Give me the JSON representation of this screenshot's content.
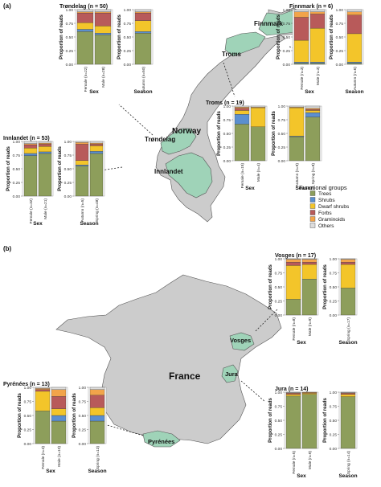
{
  "panels": [
    {
      "label": "(a)"
    },
    {
      "label": "(b)"
    }
  ],
  "map_labels": {
    "finnmark": "Finnmark",
    "troms": "Troms",
    "trondelag": "Trøndelag",
    "norway": "Norway",
    "innlandet": "Innlandet",
    "france": "France",
    "vosges": "Vosges",
    "jura": "Jura",
    "pyrenees": "Pyrénées"
  },
  "legend": {
    "title": "Functional groups",
    "items": [
      {
        "name": "Trees",
        "color": "#8d9e5b"
      },
      {
        "name": "Shrubs",
        "color": "#5b8fcf"
      },
      {
        "name": "Dwarf shrubs",
        "color": "#f3c52a"
      },
      {
        "name": "Forbs",
        "color": "#b85a5a"
      },
      {
        "name": "Graminoids",
        "color": "#f2a44a"
      },
      {
        "name": "Others",
        "color": "#dddddd"
      }
    ]
  },
  "colors": {
    "map_land": "#cccccc",
    "map_border": "#555555",
    "highlight_region": "#9fd3b8"
  },
  "chart_data": [
    {
      "type": "bar",
      "stacked": true,
      "title": "Trøndelag (n = 50)",
      "ylabel": "Proportion of reads",
      "ylim": [
        0,
        1
      ],
      "yticks": [
        "0.00",
        "0.25",
        "0.50",
        "0.75",
        "1.00"
      ],
      "stack_order": [
        "Trees",
        "Shrubs",
        "Dwarf shrubs",
        "Forbs",
        "Graminoids",
        "Others"
      ],
      "groups": [
        {
          "label": "Sex",
          "bars": [
            {
              "category": "Female (n=22)",
              "values": [
                0.6,
                0.04,
                0.12,
                0.18,
                0.02,
                0.04
              ]
            },
            {
              "category": "Male (n=28)",
              "values": [
                0.54,
                0.03,
                0.13,
                0.24,
                0.02,
                0.04
              ]
            }
          ]
        },
        {
          "label": "Season",
          "bars": [
            {
              "category": "Autumn (n=50)",
              "values": [
                0.57,
                0.03,
                0.2,
                0.14,
                0.02,
                0.04
              ]
            }
          ]
        }
      ]
    },
    {
      "type": "bar",
      "stacked": true,
      "title": "Finnmark (n = 6)",
      "ylabel": "Proportion of reads",
      "ylim": [
        0,
        1
      ],
      "yticks": [
        "0.00",
        "0.25",
        "0.50",
        "0.75",
        "1.00"
      ],
      "stack_order": [
        "Trees",
        "Shrubs",
        "Dwarf shrubs",
        "Forbs",
        "Graminoids",
        "Others"
      ],
      "groups": [
        {
          "label": "Sex",
          "bars": [
            {
              "category": "Female (n=3)",
              "values": [
                0.02,
                0.02,
                0.4,
                0.42,
                0.1,
                0.04
              ]
            },
            {
              "category": "Male (n=3)",
              "values": [
                0.02,
                0.02,
                0.62,
                0.26,
                0.04,
                0.04
              ]
            }
          ]
        },
        {
          "label": "Season",
          "bars": [
            {
              "category": "Autumn (n=6)",
              "values": [
                0.02,
                0.02,
                0.52,
                0.34,
                0.06,
                0.04
              ]
            }
          ]
        }
      ]
    },
    {
      "type": "bar",
      "stacked": true,
      "title": "Innlandet (n = 53)",
      "ylabel": "Proportion of reads",
      "ylim": [
        0,
        1
      ],
      "yticks": [
        "0.00",
        "0.25",
        "0.50",
        "0.75",
        "1.00"
      ],
      "stack_order": [
        "Trees",
        "Shrubs",
        "Dwarf shrubs",
        "Forbs",
        "Graminoids",
        "Others"
      ],
      "groups": [
        {
          "label": "Sex",
          "bars": [
            {
              "category": "Female (n=32)",
              "values": [
                0.74,
                0.04,
                0.1,
                0.06,
                0.02,
                0.04
              ]
            },
            {
              "category": "Male (n=21)",
              "values": [
                0.78,
                0.03,
                0.1,
                0.04,
                0.02,
                0.03
              ]
            }
          ]
        },
        {
          "label": "Season",
          "bars": [
            {
              "category": "Autumn (n=5)",
              "values": [
                0.55,
                0.02,
                0.08,
                0.3,
                0.03,
                0.02
              ]
            },
            {
              "category": "Spring (n=48)",
              "values": [
                0.78,
                0.04,
                0.1,
                0.03,
                0.02,
                0.03
              ]
            }
          ]
        }
      ]
    },
    {
      "type": "bar",
      "stacked": true,
      "title": "Troms (n = 19)",
      "ylabel": "Proportion of reads",
      "ylim": [
        0,
        1
      ],
      "yticks": [
        "0.00",
        "0.25",
        "0.50",
        "0.75",
        "1.00"
      ],
      "stack_order": [
        "Trees",
        "Shrubs",
        "Dwarf shrubs",
        "Forbs",
        "Graminoids",
        "Others"
      ],
      "groups": [
        {
          "label": "Sex",
          "bars": [
            {
              "category": "Female (n=15)",
              "values": [
                0.67,
                0.18,
                0.07,
                0.04,
                0.02,
                0.02
              ]
            },
            {
              "category": "Male (n=4)",
              "values": [
                0.62,
                0.0,
                0.35,
                0.0,
                0.01,
                0.02
              ]
            }
          ]
        },
        {
          "label": "Season",
          "bars": [
            {
              "category": "Autumn (n=9)",
              "values": [
                0.44,
                0.01,
                0.52,
                0.0,
                0.01,
                0.02
              ]
            },
            {
              "category": "Spring (n=8)",
              "values": [
                0.8,
                0.08,
                0.04,
                0.02,
                0.02,
                0.04
              ]
            }
          ]
        }
      ]
    },
    {
      "type": "bar",
      "stacked": true,
      "title": "Vosges (n = 17)",
      "ylabel": "Proportion of reads",
      "ylim": [
        0,
        1
      ],
      "yticks": [
        "0.00",
        "0.25",
        "0.50",
        "0.75",
        "1.00"
      ],
      "stack_order": [
        "Trees",
        "Shrubs",
        "Dwarf shrubs",
        "Forbs",
        "Graminoids",
        "Others"
      ],
      "groups": [
        {
          "label": "Sex",
          "bars": [
            {
              "category": "Female (n=8)",
              "values": [
                0.28,
                0.0,
                0.6,
                0.06,
                0.05,
                0.01
              ]
            },
            {
              "category": "Male (n=9)",
              "values": [
                0.64,
                0.0,
                0.26,
                0.04,
                0.05,
                0.01
              ]
            }
          ]
        },
        {
          "label": "Season",
          "bars": [
            {
              "category": "Spring (n=17)",
              "values": [
                0.48,
                0.0,
                0.42,
                0.04,
                0.05,
                0.01
              ]
            }
          ]
        }
      ]
    },
    {
      "type": "bar",
      "stacked": true,
      "title": "Jura (n = 14)",
      "ylabel": "Proportion of reads",
      "ylim": [
        0,
        1
      ],
      "yticks": [
        "0.00",
        "0.25",
        "0.50",
        "0.75",
        "1.00"
      ],
      "stack_order": [
        "Trees",
        "Shrubs",
        "Dwarf shrubs",
        "Forbs",
        "Graminoids",
        "Others"
      ],
      "groups": [
        {
          "label": "Sex",
          "bars": [
            {
              "category": "Female (n=5)",
              "values": [
                0.93,
                0.0,
                0.03,
                0.02,
                0.01,
                0.01
              ]
            },
            {
              "category": "Male (n=9)",
              "values": [
                0.96,
                0.0,
                0.02,
                0.01,
                0.01,
                0.0
              ]
            }
          ]
        },
        {
          "label": "Season",
          "bars": [
            {
              "category": "Spring (n=14)",
              "values": [
                0.92,
                0.0,
                0.04,
                0.02,
                0.01,
                0.01
              ]
            }
          ]
        }
      ]
    },
    {
      "type": "bar",
      "stacked": true,
      "title": "Pyrénées (n = 13)",
      "ylabel": "Proportion of reads",
      "ylim": [
        0,
        1
      ],
      "yticks": [
        "0.00",
        "0.25",
        "0.50",
        "0.75",
        "1.00"
      ],
      "stack_order": [
        "Trees",
        "Shrubs",
        "Dwarf shrubs",
        "Forbs",
        "Graminoids",
        "Others"
      ],
      "groups": [
        {
          "label": "Sex",
          "bars": [
            {
              "category": "Female (n=3)",
              "values": [
                0.58,
                0.0,
                0.35,
                0.03,
                0.02,
                0.02
              ]
            },
            {
              "category": "Male (n=10)",
              "values": [
                0.4,
                0.1,
                0.12,
                0.22,
                0.12,
                0.04
              ]
            }
          ]
        },
        {
          "label": "Season",
          "bars": [
            {
              "category": "Spring (n=13)",
              "values": [
                0.4,
                0.1,
                0.14,
                0.22,
                0.1,
                0.04
              ]
            }
          ]
        }
      ]
    }
  ]
}
